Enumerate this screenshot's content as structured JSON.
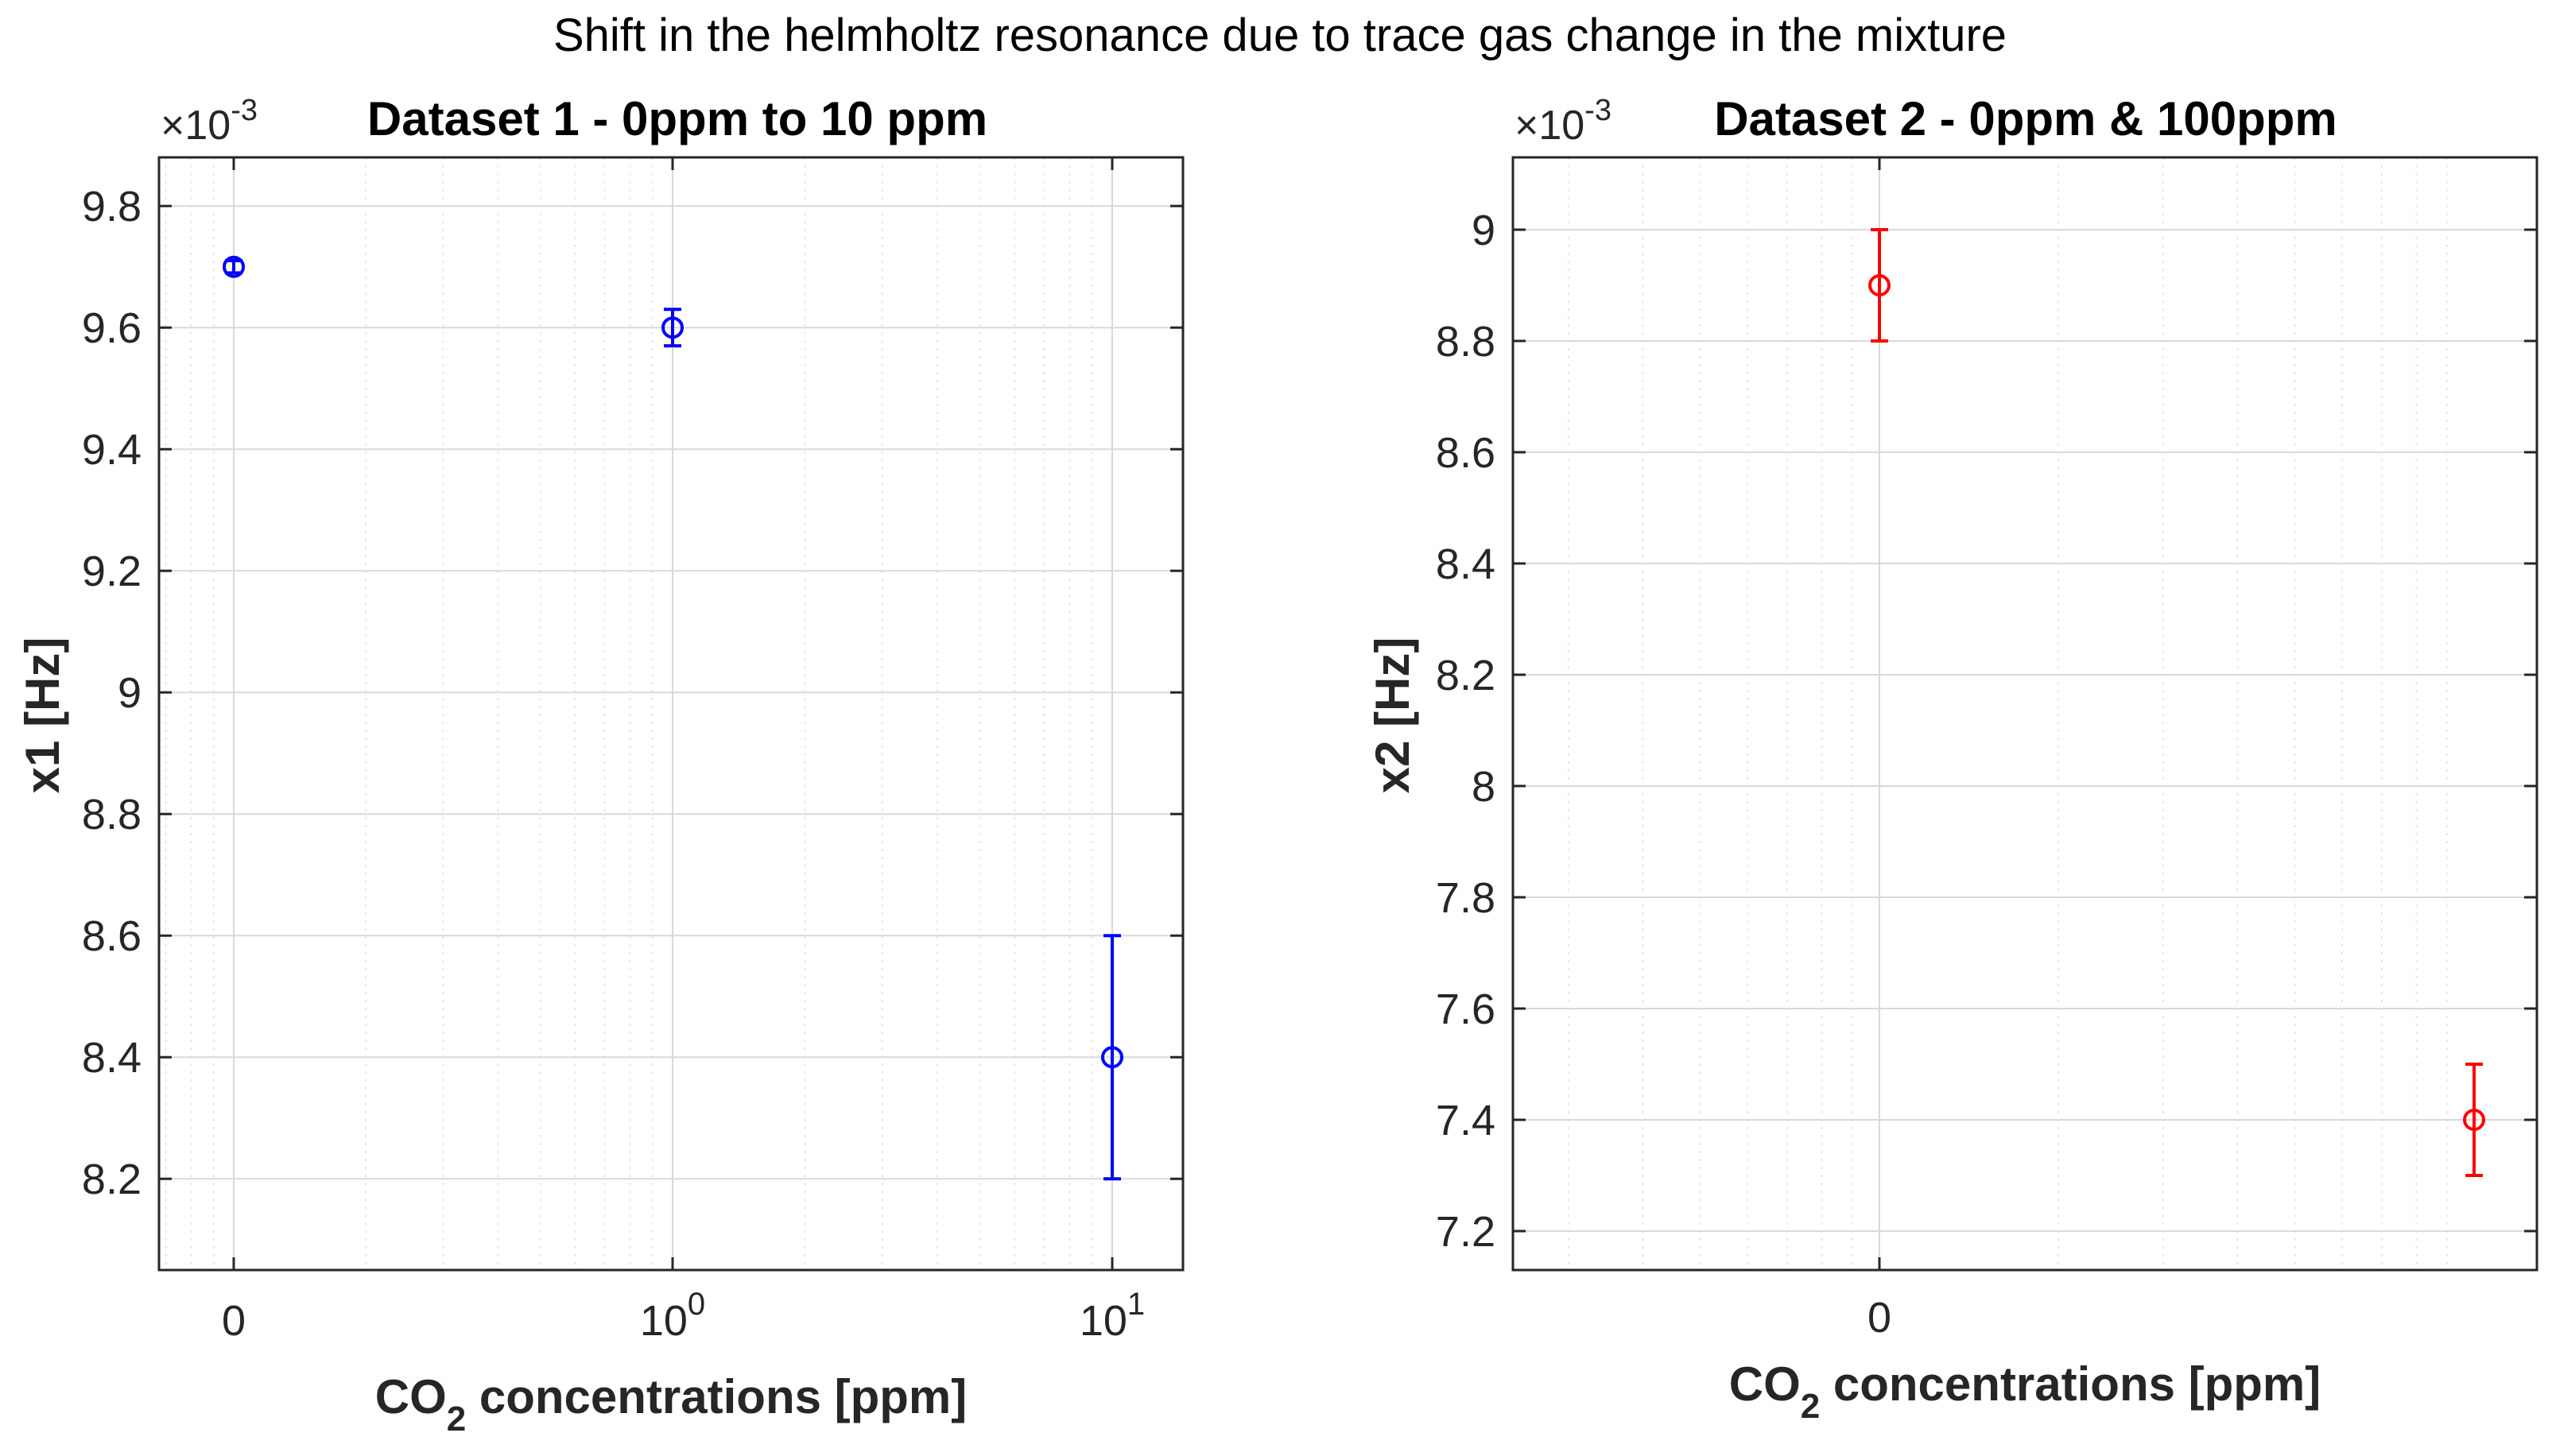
{
  "figure_title": "Shift in the helmholtz resonance due to trace gas change in the mixture",
  "chart_data": [
    {
      "type": "scatter",
      "title": "Dataset 1 - 0ppm to 10 ppm",
      "xlabel": "CO2 concentrations [ppm]",
      "xlabel_parts": {
        "main": "CO",
        "sub": "2",
        "rest": " concentrations [ppm]"
      },
      "ylabel": "x1 [Hz]",
      "y_multiplier": {
        "base": "×10",
        "exp": "-3"
      },
      "x_scale": "log",
      "x_ticks": [
        {
          "value": 0,
          "base": "0",
          "exp": ""
        },
        {
          "value": 1,
          "base": "10",
          "exp": "0"
        },
        {
          "value": 10,
          "base": "10",
          "exp": "1"
        }
      ],
      "y_ticks": [
        "8.2",
        "8.4",
        "8.6",
        "8.8",
        "9",
        "9.2",
        "9.4",
        "9.6",
        "9.8"
      ],
      "ylim": [
        8.05,
        9.88
      ],
      "grid": true,
      "color": "#0000ff",
      "points": [
        {
          "x": 0,
          "y": 9.7,
          "err": 0.01
        },
        {
          "x": 1,
          "y": 9.6,
          "err": 0.03
        },
        {
          "x": 10,
          "y": 8.4,
          "err": 0.2
        }
      ]
    },
    {
      "type": "scatter",
      "title": "Dataset 2 - 0ppm & 100ppm",
      "xlabel": "CO2 concentrations [ppm]",
      "xlabel_parts": {
        "main": "CO",
        "sub": "2",
        "rest": " concentrations [ppm]"
      },
      "ylabel": "x2 [Hz]",
      "y_multiplier": {
        "base": "×10",
        "exp": "-3"
      },
      "x_scale": "log",
      "x_ticks": [
        {
          "value": 0,
          "base": "0",
          "exp": ""
        }
      ],
      "y_ticks": [
        "7.2",
        "7.4",
        "7.6",
        "7.8",
        "8",
        "8.2",
        "8.4",
        "8.6",
        "8.8",
        "9"
      ],
      "ylim": [
        7.13,
        9.13
      ],
      "grid": true,
      "color": "#ff0000",
      "points": [
        {
          "x": 0,
          "y": 8.9,
          "err": 0.1
        },
        {
          "x": 100,
          "y": 7.4,
          "err": 0.1
        }
      ]
    }
  ]
}
